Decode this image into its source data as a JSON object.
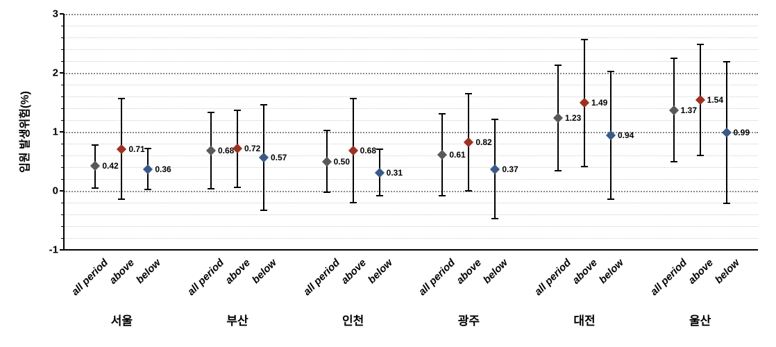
{
  "chart": {
    "type": "error-bar",
    "ylabel": "입원 발생위험(%)",
    "ylim": [
      -1,
      3
    ],
    "ytick_step": 1,
    "minor_ticks_per_major": 5,
    "background_color": "#ffffff",
    "grid_major_color": "#888888",
    "grid_minor_color": "#cccccc",
    "axis_color": "#000000",
    "label_fontsize": 16,
    "tick_fontsize": 15,
    "data_label_fontsize": 12,
    "marker_colors": {
      "all_period": "#595959",
      "above": "#a03020",
      "below": "#3a5a8a"
    },
    "cities": [
      "서울",
      "부산",
      "인천",
      "광주",
      "대전",
      "울산"
    ],
    "subcategories": [
      "all period",
      "above",
      "below"
    ],
    "points": [
      {
        "value": 0.42,
        "low": 0.05,
        "high": 0.78,
        "label": "0.42",
        "marker": "all_period"
      },
      {
        "value": 0.71,
        "low": -0.14,
        "high": 1.56,
        "label": "0.71",
        "marker": "above"
      },
      {
        "value": 0.36,
        "low": 0.02,
        "high": 0.72,
        "label": "0.36",
        "marker": "below"
      },
      {
        "value": 0.68,
        "low": 0.04,
        "high": 1.33,
        "label": "0.68",
        "marker": "all_period"
      },
      {
        "value": 0.72,
        "low": 0.06,
        "high": 1.37,
        "label": "0.72",
        "marker": "above"
      },
      {
        "value": 0.57,
        "low": -0.33,
        "high": 1.46,
        "label": "0.57",
        "marker": "below"
      },
      {
        "value": 0.5,
        "low": -0.02,
        "high": 1.02,
        "label": "0.50",
        "marker": "all_period"
      },
      {
        "value": 0.68,
        "low": -0.2,
        "high": 1.56,
        "label": "0.68",
        "marker": "above"
      },
      {
        "value": 0.31,
        "low": -0.08,
        "high": 0.71,
        "label": "0.31",
        "marker": "below"
      },
      {
        "value": 0.61,
        "low": -0.08,
        "high": 1.31,
        "label": "0.61",
        "marker": "all_period"
      },
      {
        "value": 0.82,
        "low": 0.0,
        "high": 1.65,
        "label": "0.82",
        "marker": "above"
      },
      {
        "value": 0.37,
        "low": -0.47,
        "high": 1.21,
        "label": "0.37",
        "marker": "below"
      },
      {
        "value": 1.23,
        "low": 0.34,
        "high": 2.13,
        "label": "1.23",
        "marker": "all_period"
      },
      {
        "value": 1.49,
        "low": 0.41,
        "high": 2.57,
        "label": "1.49",
        "marker": "above"
      },
      {
        "value": 0.94,
        "low": -0.14,
        "high": 2.02,
        "label": "0.94",
        "marker": "below"
      },
      {
        "value": 1.37,
        "low": 0.49,
        "high": 2.25,
        "label": "1.37",
        "marker": "all_period"
      },
      {
        "value": 1.54,
        "low": 0.6,
        "high": 2.48,
        "label": "1.54",
        "marker": "above"
      },
      {
        "value": 0.99,
        "low": -0.21,
        "high": 2.19,
        "label": "0.99",
        "marker": "below"
      }
    ],
    "yticks": [
      {
        "value": -1,
        "label": "-1"
      },
      {
        "value": 0,
        "label": "0"
      },
      {
        "value": 1,
        "label": "1"
      },
      {
        "value": 2,
        "label": "2"
      },
      {
        "value": 3,
        "label": "3"
      }
    ]
  }
}
